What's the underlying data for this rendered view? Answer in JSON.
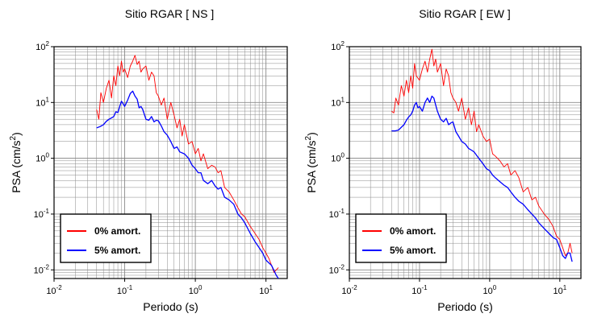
{
  "chart_data": [
    {
      "type": "line",
      "title": "Sitio RGAR [ NS ]",
      "xlabel": "Periodo (s)",
      "ylabel_base": "PSA (cm/s",
      "ylabel_exp": "2",
      "ylabel_tail": ")",
      "x_scale": "log",
      "y_scale": "log",
      "xlim": [
        0.01,
        20
      ],
      "ylim": [
        0.007,
        100
      ],
      "x_ticks": [
        {
          "base": "10",
          "exp": "-2",
          "value": 0.01
        },
        {
          "base": "10",
          "exp": "-1",
          "value": 0.1
        },
        {
          "base": "10",
          "exp": "0",
          "value": 1
        },
        {
          "base": "10",
          "exp": "1",
          "value": 10
        }
      ],
      "y_ticks": [
        {
          "base": "10",
          "exp": "-2",
          "value": 0.01
        },
        {
          "base": "10",
          "exp": "-1",
          "value": 0.1
        },
        {
          "base": "10",
          "exp": "0",
          "value": 1
        },
        {
          "base": "10",
          "exp": "1",
          "value": 10
        },
        {
          "base": "10",
          "exp": "2",
          "value": 100
        }
      ],
      "grid": true,
      "legend_position": "bottom-left",
      "series": [
        {
          "name": "0% amort.",
          "color": "#ff0000",
          "x": [
            0.04,
            0.043,
            0.046,
            0.05,
            0.055,
            0.06,
            0.065,
            0.07,
            0.075,
            0.08,
            0.085,
            0.09,
            0.095,
            0.1,
            0.11,
            0.12,
            0.13,
            0.14,
            0.15,
            0.16,
            0.17,
            0.18,
            0.2,
            0.22,
            0.24,
            0.26,
            0.28,
            0.3,
            0.33,
            0.36,
            0.4,
            0.45,
            0.5,
            0.55,
            0.6,
            0.65,
            0.7,
            0.8,
            0.9,
            1.0,
            1.1,
            1.2,
            1.3,
            1.5,
            1.7,
            1.9,
            2.1,
            2.3,
            2.6,
            3.0,
            3.5,
            4.0,
            4.5,
            5.0,
            6.0,
            7.0,
            8.0,
            9.0,
            10.0,
            11.0,
            12.0,
            13.0,
            14.0,
            15.0
          ],
          "y": [
            7.5,
            5.0,
            15.0,
            10.0,
            18.0,
            25.0,
            12.0,
            30.0,
            20.0,
            45.0,
            30.0,
            55.0,
            35.0,
            40.0,
            28.0,
            45.0,
            55.0,
            70.0,
            48.0,
            55.0,
            35.0,
            40.0,
            45.0,
            25.0,
            35.0,
            30.0,
            15.0,
            13.0,
            9.0,
            12.0,
            5.0,
            10.0,
            6.0,
            3.5,
            5.0,
            2.5,
            4.0,
            1.8,
            2.0,
            1.2,
            1.5,
            0.9,
            1.2,
            0.65,
            0.75,
            0.7,
            0.55,
            0.6,
            0.3,
            0.25,
            0.18,
            0.13,
            0.1,
            0.09,
            0.06,
            0.045,
            0.035,
            0.025,
            0.02,
            0.016,
            0.012,
            0.009,
            0.01,
            0.011
          ]
        },
        {
          "name": "5% amort.",
          "color": "#0000ff",
          "x": [
            0.04,
            0.045,
            0.05,
            0.055,
            0.06,
            0.065,
            0.07,
            0.075,
            0.08,
            0.085,
            0.09,
            0.095,
            0.1,
            0.11,
            0.12,
            0.13,
            0.14,
            0.15,
            0.16,
            0.17,
            0.18,
            0.2,
            0.22,
            0.24,
            0.26,
            0.28,
            0.3,
            0.33,
            0.36,
            0.4,
            0.45,
            0.5,
            0.55,
            0.6,
            0.7,
            0.8,
            0.9,
            1.0,
            1.1,
            1.2,
            1.3,
            1.5,
            1.7,
            1.9,
            2.1,
            2.3,
            2.6,
            3.0,
            3.5,
            4.0,
            4.5,
            5.0,
            6.0,
            7.0,
            8.0,
            9.0,
            10.0,
            12.0,
            14.0,
            15.0
          ],
          "y": [
            3.5,
            3.7,
            4.0,
            4.6,
            5.0,
            5.3,
            5.6,
            6.8,
            6.6,
            8.5,
            10.5,
            9.5,
            8.5,
            11.0,
            14.5,
            16.0,
            13.0,
            11.5,
            8.0,
            8.5,
            7.5,
            5.0,
            4.8,
            5.6,
            4.5,
            4.8,
            4.7,
            3.8,
            3.0,
            2.6,
            2.0,
            1.5,
            1.6,
            1.3,
            1.2,
            1.0,
            0.75,
            0.65,
            0.55,
            0.55,
            0.4,
            0.35,
            0.4,
            0.32,
            0.28,
            0.3,
            0.2,
            0.18,
            0.15,
            0.1,
            0.085,
            0.07,
            0.045,
            0.032,
            0.025,
            0.02,
            0.015,
            0.012,
            0.008,
            0.007
          ]
        }
      ]
    },
    {
      "type": "line",
      "title": "Sitio RGAR [ EW ]",
      "xlabel": "Periodo (s)",
      "ylabel_base": "PSA (cm/s",
      "ylabel_exp": "2",
      "ylabel_tail": ")",
      "x_scale": "log",
      "y_scale": "log",
      "xlim": [
        0.01,
        20
      ],
      "ylim": [
        0.007,
        100
      ],
      "x_ticks": [
        {
          "base": "10",
          "exp": "-2",
          "value": 0.01
        },
        {
          "base": "10",
          "exp": "-1",
          "value": 0.1
        },
        {
          "base": "10",
          "exp": "0",
          "value": 1
        },
        {
          "base": "10",
          "exp": "1",
          "value": 10
        }
      ],
      "y_ticks": [
        {
          "base": "10",
          "exp": "-2",
          "value": 0.01
        },
        {
          "base": "10",
          "exp": "-1",
          "value": 0.1
        },
        {
          "base": "10",
          "exp": "0",
          "value": 1
        },
        {
          "base": "10",
          "exp": "1",
          "value": 10
        },
        {
          "base": "10",
          "exp": "2",
          "value": 100
        }
      ],
      "grid": true,
      "legend_position": "bottom-left",
      "series": [
        {
          "name": "0% amort.",
          "color": "#ff0000",
          "x": [
            0.04,
            0.043,
            0.046,
            0.05,
            0.055,
            0.06,
            0.065,
            0.07,
            0.075,
            0.08,
            0.085,
            0.09,
            0.1,
            0.11,
            0.12,
            0.13,
            0.14,
            0.15,
            0.16,
            0.17,
            0.18,
            0.2,
            0.22,
            0.24,
            0.26,
            0.28,
            0.3,
            0.33,
            0.36,
            0.4,
            0.45,
            0.5,
            0.55,
            0.6,
            0.65,
            0.7,
            0.8,
            0.9,
            1.0,
            1.1,
            1.2,
            1.4,
            1.6,
            1.8,
            2.0,
            2.3,
            2.6,
            3.0,
            3.5,
            4.0,
            4.5,
            5.0,
            6.0,
            7.0,
            8.0,
            9.0,
            10.0,
            11.0,
            12.0,
            13.0,
            14.0,
            15.0
          ],
          "y": [
            7.0,
            6.5,
            12.0,
            9.0,
            20.0,
            13.0,
            25.0,
            15.0,
            30.0,
            18.0,
            50.0,
            30.0,
            25.0,
            40.0,
            55.0,
            35.0,
            60.0,
            90.0,
            45.0,
            60.0,
            35.0,
            50.0,
            20.0,
            40.0,
            30.0,
            15.0,
            12.0,
            10.0,
            7.0,
            12.0,
            5.0,
            8.0,
            4.0,
            7.0,
            3.0,
            4.0,
            2.5,
            2.0,
            2.2,
            1.2,
            1.1,
            0.9,
            0.7,
            0.8,
            0.5,
            0.6,
            0.45,
            0.25,
            0.3,
            0.18,
            0.2,
            0.14,
            0.1,
            0.08,
            0.06,
            0.04,
            0.035,
            0.025,
            0.018,
            0.02,
            0.03,
            0.02
          ]
        },
        {
          "name": "5% amort.",
          "color": "#0000ff",
          "x": [
            0.04,
            0.045,
            0.05,
            0.055,
            0.06,
            0.065,
            0.07,
            0.075,
            0.08,
            0.085,
            0.09,
            0.095,
            0.1,
            0.11,
            0.12,
            0.13,
            0.14,
            0.15,
            0.16,
            0.17,
            0.18,
            0.2,
            0.22,
            0.24,
            0.26,
            0.28,
            0.3,
            0.33,
            0.36,
            0.4,
            0.45,
            0.5,
            0.55,
            0.6,
            0.7,
            0.8,
            0.9,
            1.0,
            1.1,
            1.2,
            1.4,
            1.6,
            1.8,
            2.0,
            2.3,
            2.6,
            3.0,
            3.5,
            4.0,
            4.5,
            5.0,
            6.0,
            7.0,
            8.0,
            9.0,
            10.0,
            11.0,
            12.0,
            13.0,
            14.0,
            15.0
          ],
          "y": [
            3.1,
            3.1,
            3.2,
            3.6,
            4.0,
            4.8,
            5.5,
            6.0,
            7.0,
            9.0,
            10.0,
            8.0,
            8.5,
            7.0,
            10.0,
            12.0,
            10.0,
            13.0,
            12.0,
            9.0,
            7.0,
            5.0,
            4.5,
            5.2,
            4.0,
            4.3,
            4.5,
            3.0,
            2.5,
            2.0,
            1.8,
            1.5,
            1.4,
            1.3,
            1.0,
            0.8,
            0.65,
            0.6,
            0.5,
            0.45,
            0.38,
            0.33,
            0.3,
            0.25,
            0.2,
            0.17,
            0.15,
            0.12,
            0.1,
            0.085,
            0.07,
            0.055,
            0.045,
            0.038,
            0.035,
            0.025,
            0.018,
            0.016,
            0.02,
            0.02,
            0.014
          ]
        }
      ]
    }
  ]
}
